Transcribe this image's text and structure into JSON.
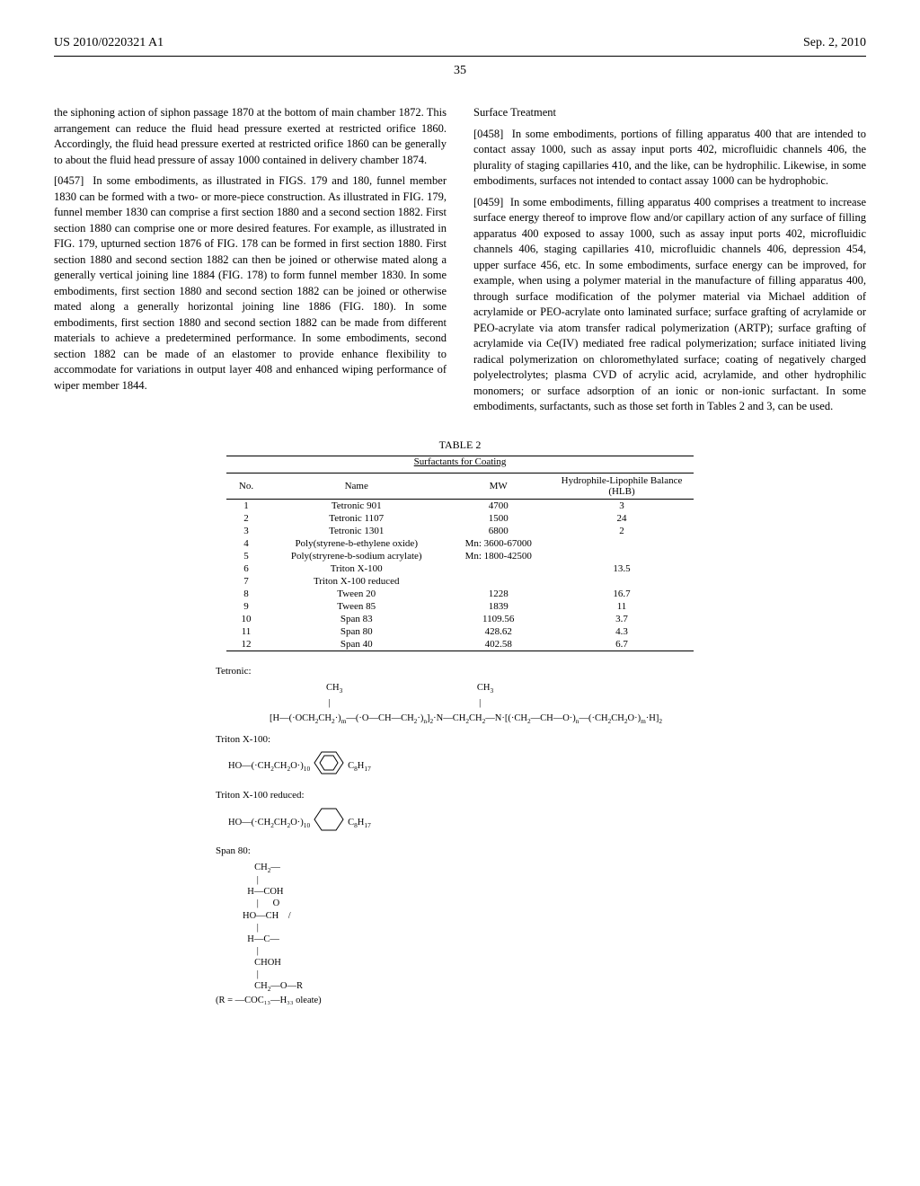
{
  "header": {
    "pub_number": "US 2010/0220321 A1",
    "pub_date": "Sep. 2, 2010",
    "page_number": "35"
  },
  "col1": {
    "p1": "the siphoning action of siphon passage 1870 at the bottom of main chamber 1872. This arrangement can reduce the fluid head pressure exerted at restricted orifice 1860. Accordingly, the fluid head pressure exerted at restricted orifice 1860 can be generally to about the fluid head pressure of assay 1000 contained in delivery chamber 1874.",
    "p2_num": "[0457]",
    "p2": "In some embodiments, as illustrated in FIGS. 179 and 180, funnel member 1830 can be formed with a two- or more-piece construction. As illustrated in FIG. 179, funnel member 1830 can comprise a first section 1880 and a second section 1882. First section 1880 can comprise one or more desired features. For example, as illustrated in FIG. 179, upturned section 1876 of FIG. 178 can be formed in first section 1880. First section 1880 and second section 1882 can then be joined or otherwise mated along a generally vertical joining line 1884 (FIG. 178) to form funnel member 1830. In some embodiments, first section 1880 and second section 1882 can be joined or otherwise mated along a generally horizontal joining line 1886 (FIG. 180). In some embodiments, first section 1880 and second section 1882 can be made from different materials to achieve a predetermined performance. In some embodiments, second section 1882 can be made of an elastomer to provide enhance flexibility to accommodate for variations in output layer 408 and enhanced wiping performance of wiper member 1844."
  },
  "col2": {
    "heading": "Surface Treatment",
    "p1_num": "[0458]",
    "p1": "In some embodiments, portions of filling apparatus 400 that are intended to contact assay 1000, such as assay input ports 402, microfluidic channels 406, the plurality of staging capillaries 410, and the like, can be hydrophilic. Likewise, in some embodiments, surfaces not intended to contact assay 1000 can be hydrophobic.",
    "p2_num": "[0459]",
    "p2": "In some embodiments, filling apparatus 400 comprises a treatment to increase surface energy thereof to improve flow and/or capillary action of any surface of filling apparatus 400 exposed to assay 1000, such as assay input ports 402, microfluidic channels 406, staging capillaries 410, microfluidic channels 406, depression 454, upper surface 456, etc. In some embodiments, surface energy can be improved, for example, when using a polymer material in the manufacture of filling apparatus 400, through surface modification of the polymer material via Michael addition of acrylamide or PEO-acrylate onto laminated surface; surface grafting of acrylamide or PEO-acrylate via atom transfer radical polymerization (ARTP); surface grafting of acrylamide via Ce(IV) mediated free radical polymerization; surface initiated living radical polymerization on chloromethylated surface; coating of negatively charged polyelectrolytes; plasma CVD of acrylic acid, acrylamide, and other hydrophilic monomers; or surface adsorption of an ionic or non-ionic surfactant. In some embodiments, surfactants, such as those set forth in Tables 2 and 3, can be used."
  },
  "table2": {
    "title": "TABLE 2",
    "subtitle": "Surfactants for Coating",
    "columns": [
      "No.",
      "Name",
      "MW",
      "Hydrophile-Lipophile Balance (HLB)"
    ],
    "rows": [
      [
        "1",
        "Tetronic 901",
        "4700",
        "3"
      ],
      [
        "2",
        "Tetronic 1107",
        "1500",
        "24"
      ],
      [
        "3",
        "Tetronic 1301",
        "6800",
        "2"
      ],
      [
        "4",
        "Poly(styrene-b-ethylene oxide)",
        "Mn: 3600-67000",
        ""
      ],
      [
        "5",
        "Poly(stryrene-b-sodium acrylate)",
        "Mn: 1800-42500",
        ""
      ],
      [
        "6",
        "Triton X-100",
        "",
        "13.5"
      ],
      [
        "7",
        "Triton X-100 reduced",
        "",
        ""
      ],
      [
        "8",
        "Tween 20",
        "1228",
        "16.7"
      ],
      [
        "9",
        "Tween 85",
        "1839",
        "11"
      ],
      [
        "10",
        "Span 83",
        "1109.56",
        "3.7"
      ],
      [
        "11",
        "Span 80",
        "428.62",
        "4.3"
      ],
      [
        "12",
        "Span 40",
        "402.58",
        "6.7"
      ]
    ]
  },
  "chem": {
    "tetronic_label": "Tetronic:",
    "triton_label": "Triton X-100:",
    "triton_red_label": "Triton X-100 reduced:",
    "span80_label": "Span 80:",
    "r_note": "(R = —COC₁₃—H₃₃  oleate)"
  }
}
